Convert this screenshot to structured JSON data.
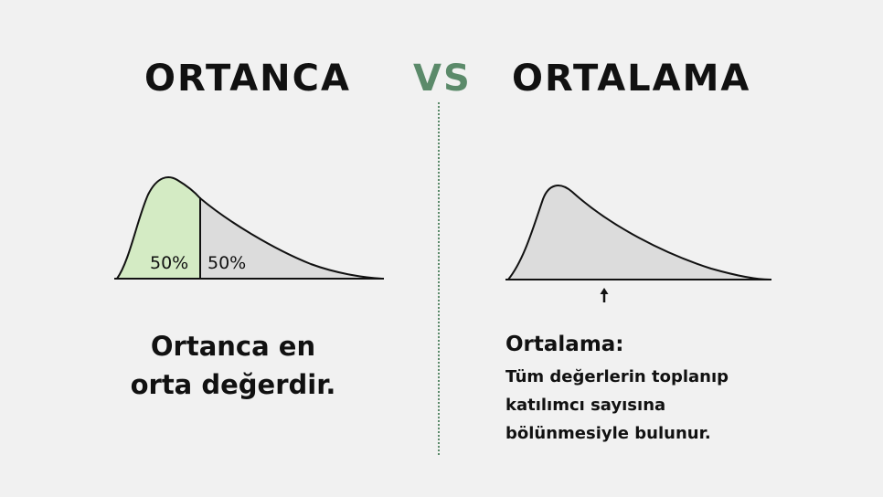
{
  "header": {
    "left_title": "ORTANCA",
    "vs": "VS",
    "right_title": "ORTALAMA"
  },
  "left_chart": {
    "left_percent": "50%",
    "right_percent": "50%",
    "fill_left": "#d4ebc4",
    "fill_right": "#dcdcdc"
  },
  "right_chart": {
    "fill": "#dcdcdc",
    "marker": "arrow-up-icon"
  },
  "left_text": {
    "line1": "Ortanca en",
    "line2": "orta değerdir."
  },
  "right_text": {
    "heading": "Ortalama:",
    "line1": "Tüm değerlerin toplanıp",
    "line2": "katılımcı sayısına",
    "line3": "bölünmesiyle bulunur."
  },
  "colors": {
    "accent": "#5b8a6a",
    "background": "#f1f1f1"
  }
}
